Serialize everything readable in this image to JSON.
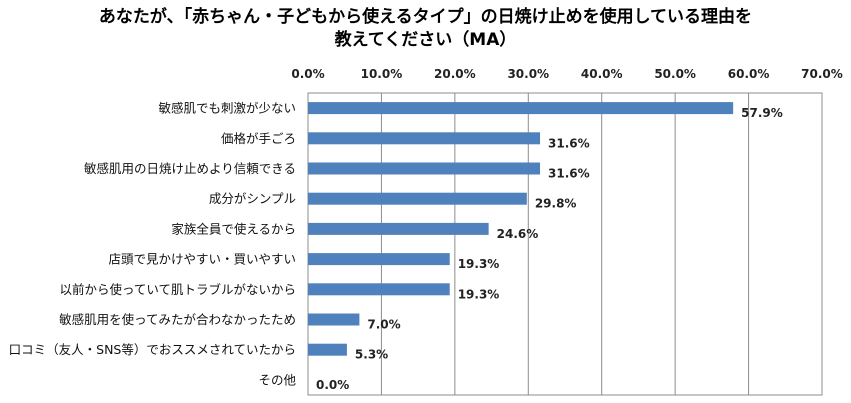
{
  "chart_data": {
    "type": "bar",
    "orientation": "horizontal",
    "title": "あなたが、「赤ちゃん・子どもから使えるタイプ」の日焼け止めを使用している理由を",
    "subtitle": "教えてください（MA）",
    "categories": [
      "敏感肌でも刺激が少ない",
      "価格が手ごろ",
      "敏感肌用の日焼け止めより信頼できる",
      "成分がシンプル",
      "家族全員で使えるから",
      "店頭で見かけやすい・買いやすい",
      "以前から使っていて肌トラブルがないから",
      "敏感肌用を使ってみたが合わなかったため",
      "口コミ（友人・SNS等）でおススメされていたから",
      "その他"
    ],
    "values": [
      57.9,
      31.6,
      31.6,
      29.8,
      24.6,
      19.3,
      19.3,
      7.0,
      5.3,
      0.0
    ],
    "value_labels": [
      "57.9%",
      "31.6%",
      "31.6%",
      "29.8%",
      "24.6%",
      "19.3%",
      "19.3%",
      "7.0%",
      "5.3%",
      "0.0%"
    ],
    "xlim": [
      0,
      70
    ],
    "xticks": [
      "0.0%",
      "10.0%",
      "20.0%",
      "30.0%",
      "40.0%",
      "50.0%",
      "60.0%",
      "70.0%"
    ],
    "xlabel": "",
    "ylabel": "",
    "grid": true,
    "bar_color": "#4f81bd",
    "legend": "none"
  }
}
